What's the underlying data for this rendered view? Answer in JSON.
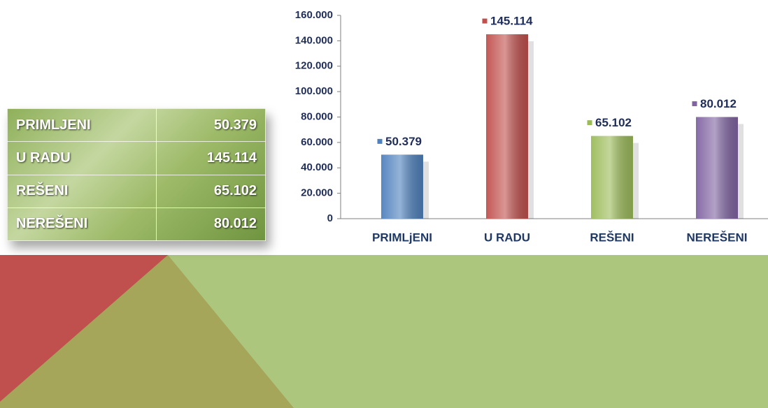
{
  "table": {
    "rows": [
      [
        "PRIMLJENI",
        "50.379"
      ],
      [
        "U RADU",
        "145.114"
      ],
      [
        "REŠENI",
        "65.102"
      ],
      [
        "NEREŠENI",
        "80.012"
      ]
    ]
  },
  "chart_data": {
    "type": "bar",
    "categories": [
      "PRIMLjENI",
      "U RADU",
      "REŠENI",
      "NEREŠENI"
    ],
    "values": [
      50379,
      145114,
      65102,
      80012
    ],
    "value_labels": [
      "50.379",
      "145.114",
      "65.102",
      "80.012"
    ],
    "colors": [
      "#4f81bd",
      "#c0504d",
      "#9bbb59",
      "#8064a2"
    ],
    "ylim": [
      0,
      160000
    ],
    "yticks": [
      0,
      {
        "value": 20000,
        "label": "20.000"
      },
      {
        "value": 40000,
        "label": "40.000"
      },
      {
        "value": 60000,
        "label": "60.000"
      },
      {
        "value": 80000,
        "label": "80.000"
      },
      {
        "value": 100000,
        "label": "100.000"
      },
      {
        "value": 120000,
        "label": "120.000"
      },
      {
        "value": 140000,
        "label": "140.000"
      },
      {
        "value": 160000,
        "label": "160.000"
      }
    ]
  }
}
